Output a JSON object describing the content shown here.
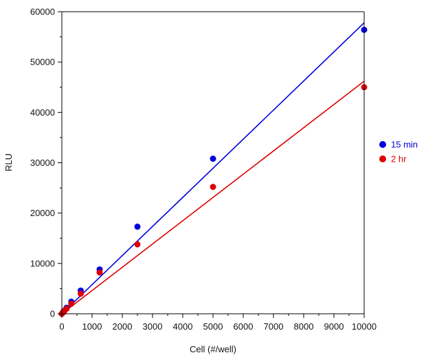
{
  "chart_data": {
    "type": "scatter",
    "title": "",
    "xlabel": "Cell (#/well)",
    "ylabel": "RLU",
    "xlim": [
      0,
      10000
    ],
    "ylim": [
      0,
      60000
    ],
    "x_ticks": [
      0,
      1000,
      2000,
      3000,
      4000,
      5000,
      6000,
      7000,
      8000,
      9000,
      10000
    ],
    "y_ticks": [
      0,
      10000,
      20000,
      30000,
      40000,
      50000,
      60000
    ],
    "grid": false,
    "legend_position": "right",
    "series": [
      {
        "name": "15 min",
        "color": "#0000dd",
        "x": [
          0,
          39,
          78,
          156,
          313,
          625,
          1250,
          2500,
          5000,
          10000
        ],
        "y": [
          0,
          300,
          600,
          1200,
          2400,
          4600,
          8800,
          17300,
          30800,
          56400
        ],
        "fit_line": {
          "x": [
            0,
            10000
          ],
          "y": [
            0,
            57800
          ]
        }
      },
      {
        "name": "2 hr",
        "color": "#dd0000",
        "x": [
          0,
          39,
          78,
          156,
          313,
          625,
          1250,
          2500,
          5000,
          10000
        ],
        "y": [
          0,
          250,
          500,
          1000,
          2000,
          4000,
          8200,
          13800,
          25200,
          45000
        ],
        "fit_line": {
          "x": [
            0,
            10000
          ],
          "y": [
            0,
            46200
          ]
        }
      }
    ]
  }
}
